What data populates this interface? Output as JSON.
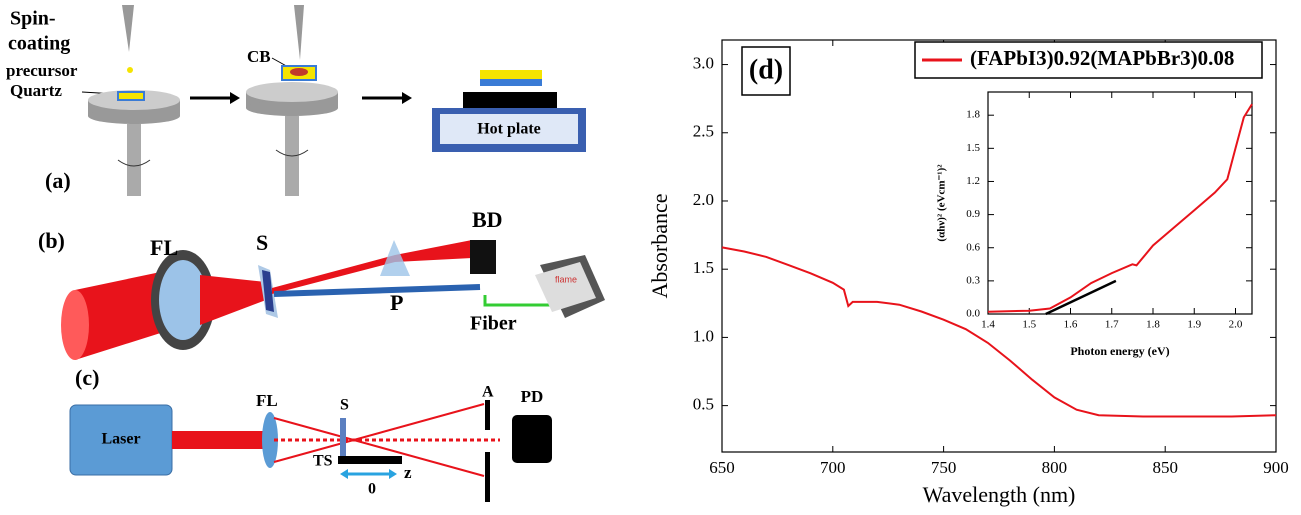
{
  "diagram": {
    "a": {
      "label": "(a)",
      "spin_coating": [
        "Spin-",
        "coating"
      ],
      "precursor": "precursor",
      "quartz": "Quartz",
      "cb": "CB",
      "hot_plate": "Hot plate"
    },
    "b": {
      "label": "(b)",
      "fl": "FL",
      "s": "S",
      "p": "P",
      "bd": "BD",
      "fiber": "Fiber",
      "brand": "flame"
    },
    "c": {
      "label": "(c)",
      "laser": "Laser",
      "fl": "FL",
      "s": "S",
      "ts": "TS",
      "zero": "0",
      "z": "z",
      "a": "A",
      "pd": "PD"
    }
  },
  "chart_data": [
    {
      "type": "line",
      "panel_label": "(d)",
      "x_label": "Wavelength (nm)",
      "y_label": "Absorbance",
      "x": [
        650,
        660,
        670,
        680,
        690,
        700,
        705,
        707,
        709,
        720,
        730,
        740,
        750,
        760,
        770,
        780,
        790,
        800,
        810,
        820,
        840,
        860,
        880,
        900
      ],
      "series": [
        {
          "name": "(FAPbI3)0.92(MAPbBr3)0.08",
          "color": "#e8131b",
          "values": [
            1.66,
            1.63,
            1.59,
            1.53,
            1.47,
            1.4,
            1.35,
            1.23,
            1.26,
            1.26,
            1.24,
            1.19,
            1.13,
            1.06,
            0.96,
            0.83,
            0.69,
            0.56,
            0.47,
            0.43,
            0.42,
            0.42,
            0.42,
            0.43
          ]
        }
      ],
      "xlim": [
        650,
        900
      ],
      "xticks": [
        650,
        700,
        750,
        800,
        850,
        900
      ],
      "ylim": [
        0.16,
        3.18
      ],
      "yticks": [
        0.5,
        {
          "value": 1,
          "label": "1.0"
        },
        1.5,
        {
          "value": 2,
          "label": "2.0"
        },
        2.5,
        {
          "value": 3,
          "label": "3.0"
        }
      ],
      "legend": "upper right",
      "grid": false
    },
    {
      "type": "line",
      "x_label": "Photon energy (eV)",
      "y_label": "(αhν)² (eVcm⁻¹)²",
      "series": [
        {
          "color": "#e8131b",
          "x": [
            1.4,
            1.5,
            1.55,
            1.6,
            1.65,
            1.7,
            1.75,
            1.76,
            1.8,
            1.85,
            1.9,
            1.95,
            1.98,
            2.0,
            2.02,
            2.04
          ],
          "values": [
            0.02,
            0.03,
            0.05,
            0.15,
            0.28,
            0.37,
            0.45,
            0.44,
            0.62,
            0.78,
            0.94,
            1.1,
            1.22,
            1.5,
            1.78,
            1.9
          ]
        },
        {
          "color": "#000000",
          "x": [
            1.54,
            1.71
          ],
          "values": [
            0,
            0.3
          ]
        }
      ],
      "xlim": [
        1.4,
        2.04
      ],
      "xticks": [
        1.4,
        1.5,
        1.6,
        1.7,
        1.8,
        1.9,
        {
          "value": 2,
          "label": "2.0"
        }
      ],
      "ylim": [
        0,
        2.01
      ],
      "yticks": [
        {
          "value": 0,
          "label": "0.0"
        },
        0.3,
        0.6,
        0.9,
        1.2,
        1.5,
        1.8
      ],
      "grid": false
    }
  ]
}
